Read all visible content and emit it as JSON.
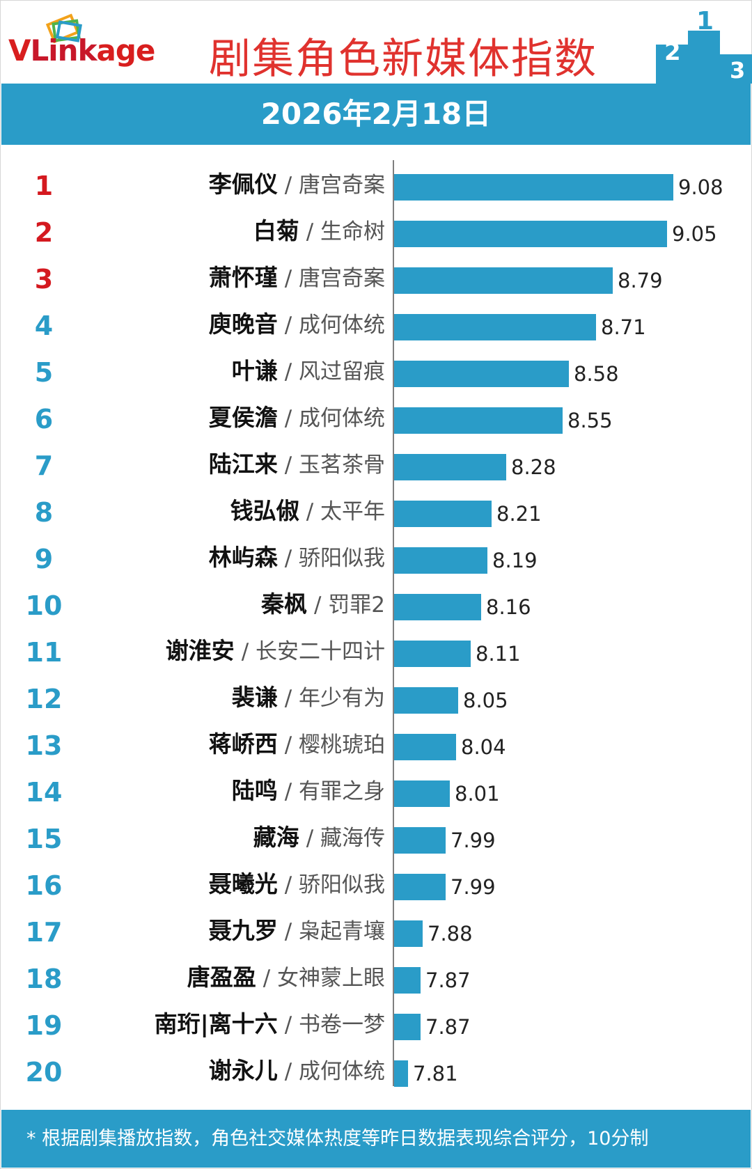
{
  "header": {
    "brand_v": "V",
    "brand_rest": "Link",
    "brand_age": "age",
    "title": "剧集角色新媒体指数",
    "date": "2026年2月18日",
    "podium_digits": [
      "2",
      "1",
      "3"
    ]
  },
  "colors": {
    "bar": "#2a9cc8",
    "top3_rank": "#d4191f",
    "other_rank": "#2a9cc8",
    "title": "#e0322e",
    "band": "#2a9cc8"
  },
  "chart_data": {
    "type": "bar",
    "orientation": "horizontal",
    "title": "剧集角色新媒体指数",
    "subtitle": "2026年2月18日",
    "xlabel": "",
    "ylabel": "",
    "xlim": [
      7.6,
      9.2
    ],
    "grid": false,
    "series_name": "指数",
    "items": [
      {
        "rank": "1",
        "name": "李佩仪",
        "show": "/ 唐宫奇案",
        "value": 9.08,
        "label": "9.08"
      },
      {
        "rank": "2",
        "name": "白菊",
        "show": "/ 生命树",
        "value": 9.05,
        "label": "9.05"
      },
      {
        "rank": "3",
        "name": "萧怀瑾",
        "show": "/ 唐宫奇案",
        "value": 8.79,
        "label": "8.79"
      },
      {
        "rank": "4",
        "name": "庾晚音",
        "show": "/ 成何体统",
        "value": 8.71,
        "label": "8.71"
      },
      {
        "rank": "5",
        "name": "叶谦",
        "show": "/ 风过留痕",
        "value": 8.58,
        "label": "8.58"
      },
      {
        "rank": "6",
        "name": "夏侯澹",
        "show": "/ 成何体统",
        "value": 8.55,
        "label": "8.55"
      },
      {
        "rank": "7",
        "name": "陆江来",
        "show": "/ 玉茗茶骨",
        "value": 8.28,
        "label": "8.28"
      },
      {
        "rank": "8",
        "name": "钱弘俶",
        "show": "/ 太平年",
        "value": 8.21,
        "label": "8.21"
      },
      {
        "rank": "9",
        "name": "林屿森",
        "show": "/ 骄阳似我",
        "value": 8.19,
        "label": "8.19"
      },
      {
        "rank": "10",
        "name": "秦枫",
        "show": "/ 罚罪2",
        "value": 8.16,
        "label": "8.16"
      },
      {
        "rank": "11",
        "name": "谢淮安",
        "show": "/ 长安二十四计",
        "value": 8.11,
        "label": "8.11"
      },
      {
        "rank": "12",
        "name": "裴谦",
        "show": "/ 年少有为",
        "value": 8.05,
        "label": "8.05"
      },
      {
        "rank": "13",
        "name": "蒋峤西",
        "show": "/ 樱桃琥珀",
        "value": 8.04,
        "label": "8.04"
      },
      {
        "rank": "14",
        "name": "陆鸣",
        "show": "/ 有罪之身",
        "value": 8.01,
        "label": "8.01"
      },
      {
        "rank": "15",
        "name": "藏海",
        "show": "/ 藏海传",
        "value": 7.99,
        "label": "7.99"
      },
      {
        "rank": "16",
        "name": "聂曦光",
        "show": "/ 骄阳似我",
        "value": 7.99,
        "label": "7.99"
      },
      {
        "rank": "17",
        "name": "聂九罗",
        "show": "/ 枭起青壤",
        "value": 7.88,
        "label": "7.88"
      },
      {
        "rank": "18",
        "name": "唐盈盈",
        "show": "/ 女神蒙上眼",
        "value": 7.87,
        "label": "7.87"
      },
      {
        "rank": "19",
        "name": "南珩|离十六",
        "show": "/ 书卷一梦",
        "value": 7.87,
        "label": "7.87"
      },
      {
        "rank": "20",
        "name": "谢永儿",
        "show": "/ 成何体统",
        "value": 7.81,
        "label": "7.81"
      }
    ]
  },
  "footer": {
    "note": "* 根据剧集播放指数，角色社交媒体热度等昨日数据表现综合评分，10分制"
  }
}
